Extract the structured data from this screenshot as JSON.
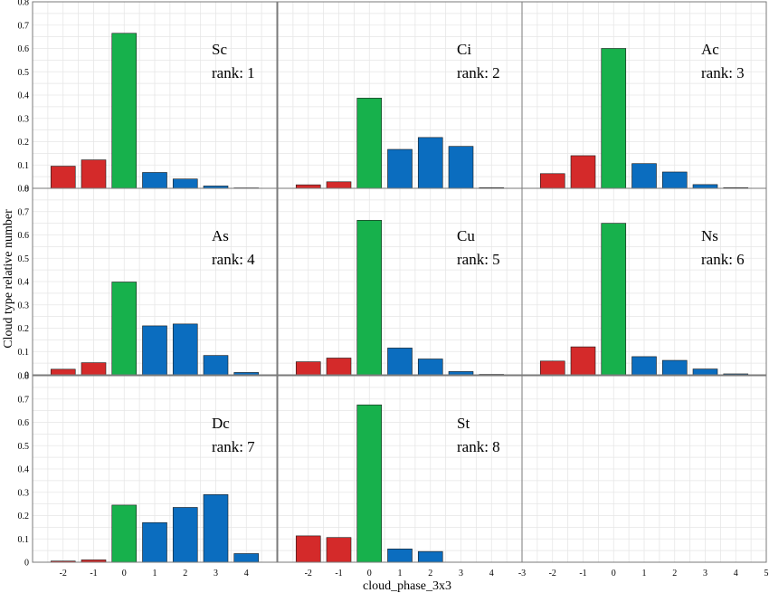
{
  "figure": {
    "xlabel": "cloud_phase_3x3",
    "ylabel": "Cloud type relative number"
  },
  "colors": {
    "negative": "#d42a2a",
    "zero": "#17b14c",
    "positive": "#0b6dbf",
    "grid": "#e6e6e6",
    "frame": "#7a7a7a"
  },
  "chart_data": [
    {
      "type": "bar",
      "name": "Sc",
      "rank_label": "rank: 1",
      "x": [
        -2,
        -1,
        0,
        1,
        2,
        3,
        4
      ],
      "values": [
        0.095,
        0.122,
        0.665,
        0.068,
        0.04,
        0.01,
        0.002
      ],
      "xlim": [
        -3,
        5
      ],
      "ylim": [
        0,
        0.8
      ],
      "grid": true
    },
    {
      "type": "bar",
      "name": "Ci",
      "rank_label": "rank: 2",
      "x": [
        -2,
        -1,
        0,
        1,
        2,
        3,
        4
      ],
      "values": [
        0.015,
        0.028,
        0.387,
        0.167,
        0.218,
        0.18,
        0.003
      ],
      "xlim": [
        -3,
        5
      ],
      "ylim": [
        0,
        0.8
      ],
      "grid": true
    },
    {
      "type": "bar",
      "name": "Ac",
      "rank_label": "rank: 3",
      "x": [
        -2,
        -1,
        0,
        1,
        2,
        3,
        4
      ],
      "values": [
        0.063,
        0.14,
        0.6,
        0.106,
        0.07,
        0.016,
        0.003
      ],
      "xlim": [
        -3,
        5
      ],
      "ylim": [
        0,
        0.8
      ],
      "grid": true
    },
    {
      "type": "bar",
      "name": "As",
      "rank_label": "rank: 4",
      "x": [
        -2,
        -1,
        0,
        1,
        2,
        3,
        4
      ],
      "values": [
        0.024,
        0.052,
        0.398,
        0.21,
        0.218,
        0.083,
        0.01
      ],
      "xlim": [
        -3,
        5
      ],
      "ylim": [
        0,
        0.8
      ],
      "grid": true
    },
    {
      "type": "bar",
      "name": "Cu",
      "rank_label": "rank: 5",
      "x": [
        -2,
        -1,
        0,
        1,
        2,
        3,
        4
      ],
      "values": [
        0.056,
        0.072,
        0.663,
        0.115,
        0.068,
        0.014,
        0.002
      ],
      "xlim": [
        -3,
        5
      ],
      "ylim": [
        0,
        0.8
      ],
      "grid": true
    },
    {
      "type": "bar",
      "name": "Ns",
      "rank_label": "rank: 6",
      "x": [
        -2,
        -1,
        0,
        1,
        2,
        3,
        4
      ],
      "values": [
        0.059,
        0.12,
        0.65,
        0.078,
        0.062,
        0.025,
        0.004
      ],
      "xlim": [
        -3,
        5
      ],
      "ylim": [
        0,
        0.8
      ],
      "grid": true
    },
    {
      "type": "bar",
      "name": "Dc",
      "rank_label": "rank: 7",
      "x": [
        -2,
        -1,
        0,
        1,
        2,
        3,
        4
      ],
      "values": [
        0.005,
        0.01,
        0.245,
        0.17,
        0.235,
        0.29,
        0.037
      ],
      "xlim": [
        -3,
        5
      ],
      "ylim": [
        0,
        0.8
      ],
      "grid": true
    },
    {
      "type": "bar",
      "name": "St",
      "rank_label": "rank: 8",
      "x": [
        -2,
        -1,
        0,
        1,
        2,
        3,
        4
      ],
      "values": [
        0.113,
        0.106,
        0.675,
        0.057,
        0.046,
        0.0,
        0.0
      ],
      "xlim": [
        -3,
        5
      ],
      "ylim": [
        0,
        0.8
      ],
      "grid": true
    },
    {
      "type": "bar",
      "name": "",
      "rank_label": "",
      "x": [],
      "values": [],
      "xlim": [
        -3,
        5
      ],
      "ylim": [
        0,
        0.8
      ],
      "grid": true
    }
  ],
  "yticks": [
    "0",
    "0.1",
    "0.2",
    "0.3",
    "0.4",
    "0.5",
    "0.6",
    "0.7",
    "0.8"
  ],
  "xticks_bottom": [
    "-2",
    "-1",
    "0",
    "1",
    "2",
    "3",
    "4"
  ],
  "xticks_last": [
    "-3",
    "-2",
    "-1",
    "0",
    "1",
    "2",
    "3",
    "4",
    "5"
  ]
}
